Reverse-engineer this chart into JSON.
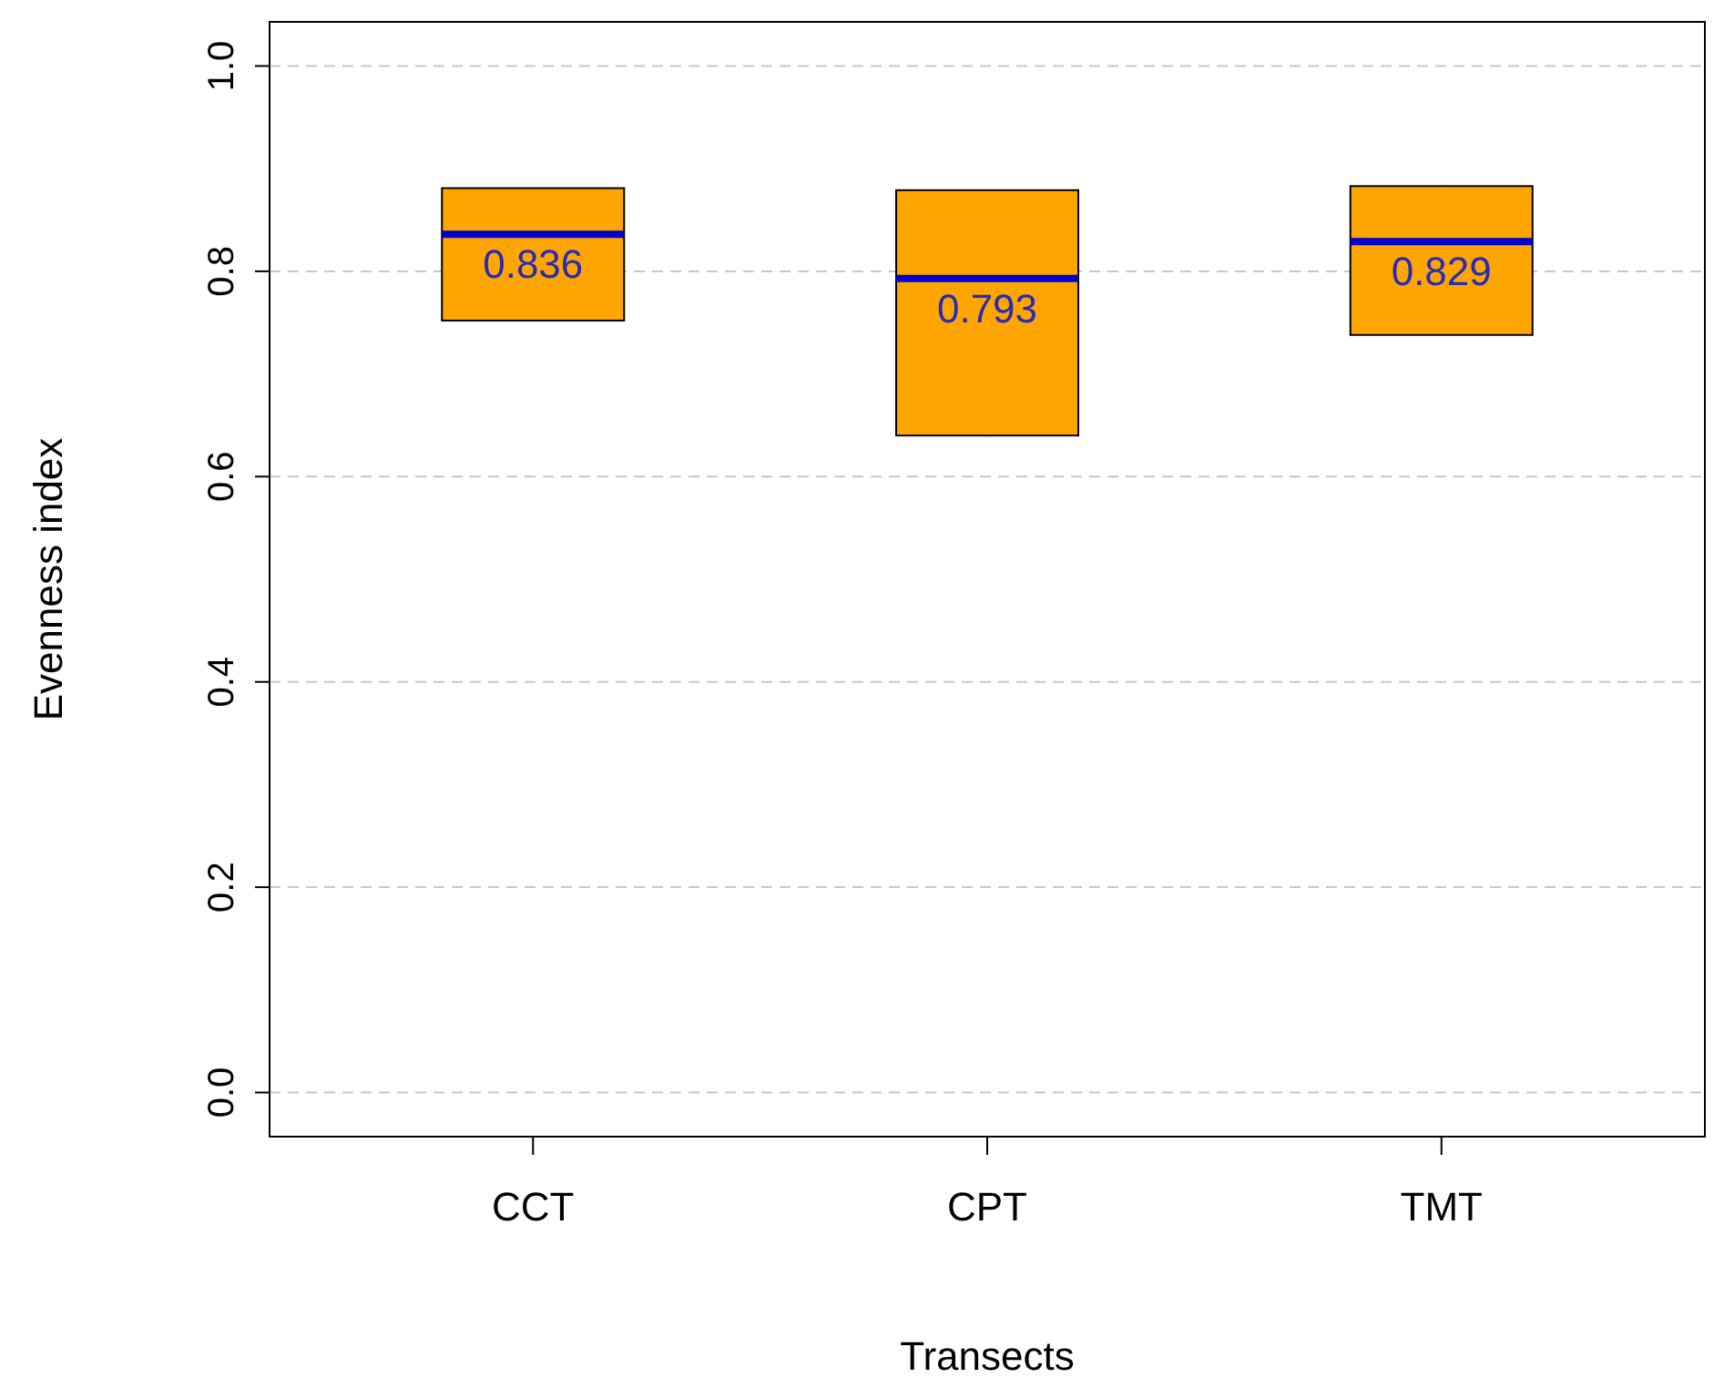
{
  "chart_data": {
    "type": "box",
    "xlabel": "Transects",
    "ylabel": "Evenness index",
    "categories": [
      "CCT",
      "CPT",
      "TMT"
    ],
    "series": [
      {
        "color": "#ffa500",
        "boxes": [
          {
            "low": 0.752,
            "q1": 0.752,
            "median": 0.836,
            "q3": 0.881,
            "high": 0.881
          },
          {
            "low": 0.64,
            "q1": 0.64,
            "median": 0.793,
            "q3": 0.879,
            "high": 0.879
          },
          {
            "low": 0.738,
            "q1": 0.738,
            "median": 0.829,
            "q3": 0.883,
            "high": 0.883
          }
        ]
      }
    ],
    "ylim": [
      -0.043,
      1.043
    ],
    "yticks": [
      {
        "value": 0,
        "label": "0.0"
      },
      {
        "value": 0.2,
        "label": "0.2"
      },
      {
        "value": 0.4,
        "label": "0.4"
      },
      {
        "value": 0.6,
        "label": "0.6"
      },
      {
        "value": 0.8,
        "label": "0.8"
      },
      {
        "value": 1,
        "label": "1.0"
      }
    ],
    "grid": "y",
    "value_labels": [
      "0.836",
      "0.793",
      "0.829"
    ]
  }
}
